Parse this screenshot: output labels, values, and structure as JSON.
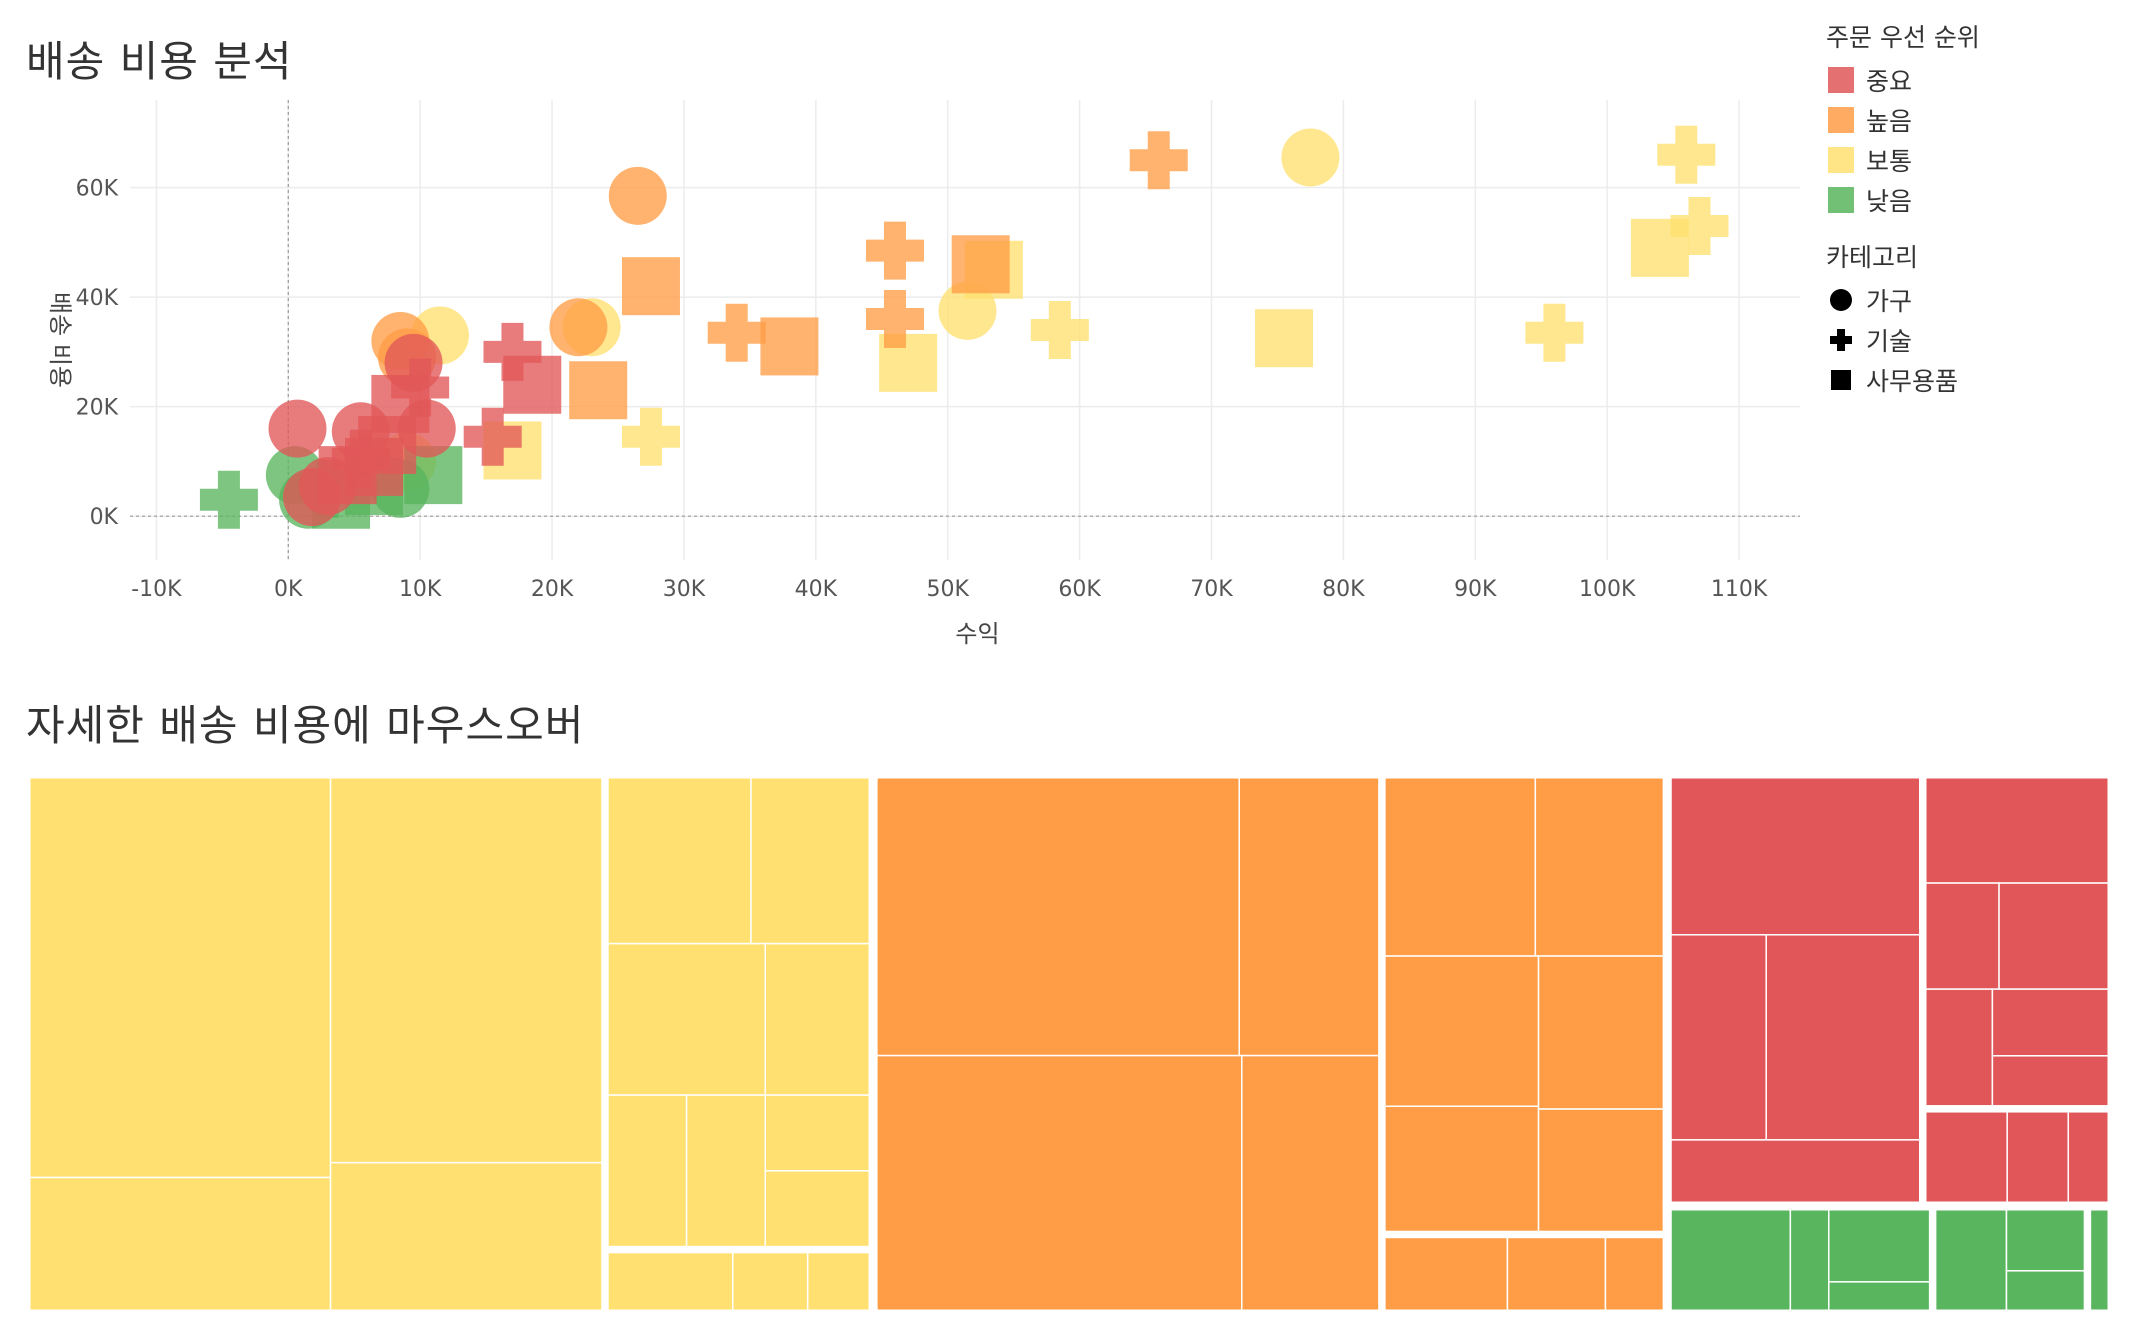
{
  "titles": {
    "scatter": "배송 비용 분석",
    "treemap": "자세한 배송 비용에 마우스오버"
  },
  "colors": {
    "중요": "#e15759",
    "높음": "#ff9d47",
    "보통": "#ffe070",
    "낮음": "#59b55e"
  },
  "legend": {
    "priority_title": "주문 우선 순위",
    "priority_items": [
      {
        "label": "중요",
        "color": "#e15759"
      },
      {
        "label": "높음",
        "color": "#ff9d47"
      },
      {
        "label": "보통",
        "color": "#ffe070"
      },
      {
        "label": "낮음",
        "color": "#59b55e"
      }
    ],
    "category_title": "카테고리",
    "category_items": [
      {
        "label": "가구",
        "shape": "circle"
      },
      {
        "label": "기술",
        "shape": "plus"
      },
      {
        "label": "사무용품",
        "shape": "square"
      }
    ]
  },
  "chart_data": {
    "type": "scatter",
    "xlabel": "수익",
    "ylabel": "배송 비용",
    "xlim": [
      -12000,
      115000
    ],
    "ylim": [
      -8000,
      76000
    ],
    "xticks": [
      -10000,
      0,
      10000,
      20000,
      30000,
      40000,
      50000,
      60000,
      70000,
      80000,
      90000,
      100000,
      110000
    ],
    "xtick_labels": [
      "-10K",
      "0K",
      "10K",
      "20K",
      "30K",
      "40K",
      "50K",
      "60K",
      "70K",
      "80K",
      "90K",
      "100K",
      "110K"
    ],
    "yticks": [
      0,
      20000,
      40000,
      60000
    ],
    "ytick_labels": [
      "0K",
      "20K",
      "40K",
      "60K"
    ],
    "grid": true,
    "points": [
      {
        "x": 77500,
        "y": 65500,
        "priority": "보통",
        "category": "가구"
      },
      {
        "x": 106000,
        "y": 66000,
        "priority": "보통",
        "category": "기술"
      },
      {
        "x": 107000,
        "y": 53000,
        "priority": "보통",
        "category": "기술"
      },
      {
        "x": 104000,
        "y": 49000,
        "priority": "보통",
        "category": "사무용품"
      },
      {
        "x": 96000,
        "y": 33500,
        "priority": "보통",
        "category": "기술"
      },
      {
        "x": 75500,
        "y": 32500,
        "priority": "보통",
        "category": "사무용품"
      },
      {
        "x": 58500,
        "y": 34000,
        "priority": "보통",
        "category": "기술"
      },
      {
        "x": 53500,
        "y": 45000,
        "priority": "보통",
        "category": "사무용품"
      },
      {
        "x": 51500,
        "y": 37500,
        "priority": "보통",
        "category": "가구"
      },
      {
        "x": 47000,
        "y": 28000,
        "priority": "보통",
        "category": "사무용품"
      },
      {
        "x": 27500,
        "y": 14500,
        "priority": "보통",
        "category": "기술"
      },
      {
        "x": 17000,
        "y": 12000,
        "priority": "보통",
        "category": "사무용품"
      },
      {
        "x": 11500,
        "y": 33000,
        "priority": "보통",
        "category": "가구"
      },
      {
        "x": 9000,
        "y": 10000,
        "priority": "보통",
        "category": "가구"
      },
      {
        "x": 23000,
        "y": 34500,
        "priority": "보통",
        "category": "가구"
      },
      {
        "x": 66000,
        "y": 65000,
        "priority": "높음",
        "category": "기술"
      },
      {
        "x": 26500,
        "y": 58500,
        "priority": "높음",
        "category": "가구"
      },
      {
        "x": 27500,
        "y": 42000,
        "priority": "높음",
        "category": "사무용품"
      },
      {
        "x": 46000,
        "y": 48500,
        "priority": "높음",
        "category": "기술"
      },
      {
        "x": 52500,
        "y": 46000,
        "priority": "높음",
        "category": "사무용품"
      },
      {
        "x": 46000,
        "y": 36000,
        "priority": "높음",
        "category": "기술"
      },
      {
        "x": 34000,
        "y": 33500,
        "priority": "높음",
        "category": "기술"
      },
      {
        "x": 38000,
        "y": 31000,
        "priority": "높음",
        "category": "사무용품"
      },
      {
        "x": 22000,
        "y": 34500,
        "priority": "높음",
        "category": "가구"
      },
      {
        "x": 23500,
        "y": 23000,
        "priority": "높음",
        "category": "사무용품"
      },
      {
        "x": 8500,
        "y": 32000,
        "priority": "높음",
        "category": "가구"
      },
      {
        "x": 9000,
        "y": 29000,
        "priority": "높음",
        "category": "가구"
      },
      {
        "x": 17000,
        "y": 30000,
        "priority": "중요",
        "category": "기술"
      },
      {
        "x": 18500,
        "y": 24000,
        "priority": "중요",
        "category": "사무용품"
      },
      {
        "x": 15500,
        "y": 14500,
        "priority": "중요",
        "category": "기술"
      },
      {
        "x": 9500,
        "y": 28000,
        "priority": "중요",
        "category": "가구"
      },
      {
        "x": 10000,
        "y": 23500,
        "priority": "중요",
        "category": "기술"
      },
      {
        "x": 8500,
        "y": 20500,
        "priority": "중요",
        "category": "사무용품"
      },
      {
        "x": 10500,
        "y": 16000,
        "priority": "중요",
        "category": "가구"
      },
      {
        "x": 5500,
        "y": 15500,
        "priority": "중요",
        "category": "가구"
      },
      {
        "x": 700,
        "y": 16000,
        "priority": "중요",
        "category": "가구"
      },
      {
        "x": 7500,
        "y": 13000,
        "priority": "중요",
        "category": "사무용품"
      },
      {
        "x": 5500,
        "y": 10500,
        "priority": "중요",
        "category": "기술"
      },
      {
        "x": 4500,
        "y": 7500,
        "priority": "중요",
        "category": "사무용품"
      },
      {
        "x": 6500,
        "y": 9000,
        "priority": "중요",
        "category": "사무용품"
      },
      {
        "x": 3000,
        "y": 5500,
        "priority": "중요",
        "category": "가구"
      },
      {
        "x": 1800,
        "y": 3500,
        "priority": "중요",
        "category": "가구"
      },
      {
        "x": -4500,
        "y": 3000,
        "priority": "낮음",
        "category": "기술"
      },
      {
        "x": 500,
        "y": 7500,
        "priority": "낮음",
        "category": "가구"
      },
      {
        "x": 1500,
        "y": 3000,
        "priority": "낮음",
        "category": "가구"
      },
      {
        "x": 4000,
        "y": 3000,
        "priority": "낮음",
        "category": "사무용품"
      },
      {
        "x": 6500,
        "y": 5500,
        "priority": "낮음",
        "category": "사무용품"
      },
      {
        "x": 8500,
        "y": 5000,
        "priority": "낮음",
        "category": "가구"
      },
      {
        "x": 11000,
        "y": 7500,
        "priority": "낮음",
        "category": "사무용품"
      },
      {
        "x": 3000,
        "y": 5000,
        "priority": "낮음",
        "category": "기술"
      }
    ]
  },
  "treemap": {
    "groups": [
      {
        "priority": "보통",
        "value": 40
      },
      {
        "priority": "높음",
        "value": 37.5
      },
      {
        "priority": "중요",
        "value": 14
      },
      {
        "priority": "낮음",
        "value": 7
      }
    ]
  }
}
